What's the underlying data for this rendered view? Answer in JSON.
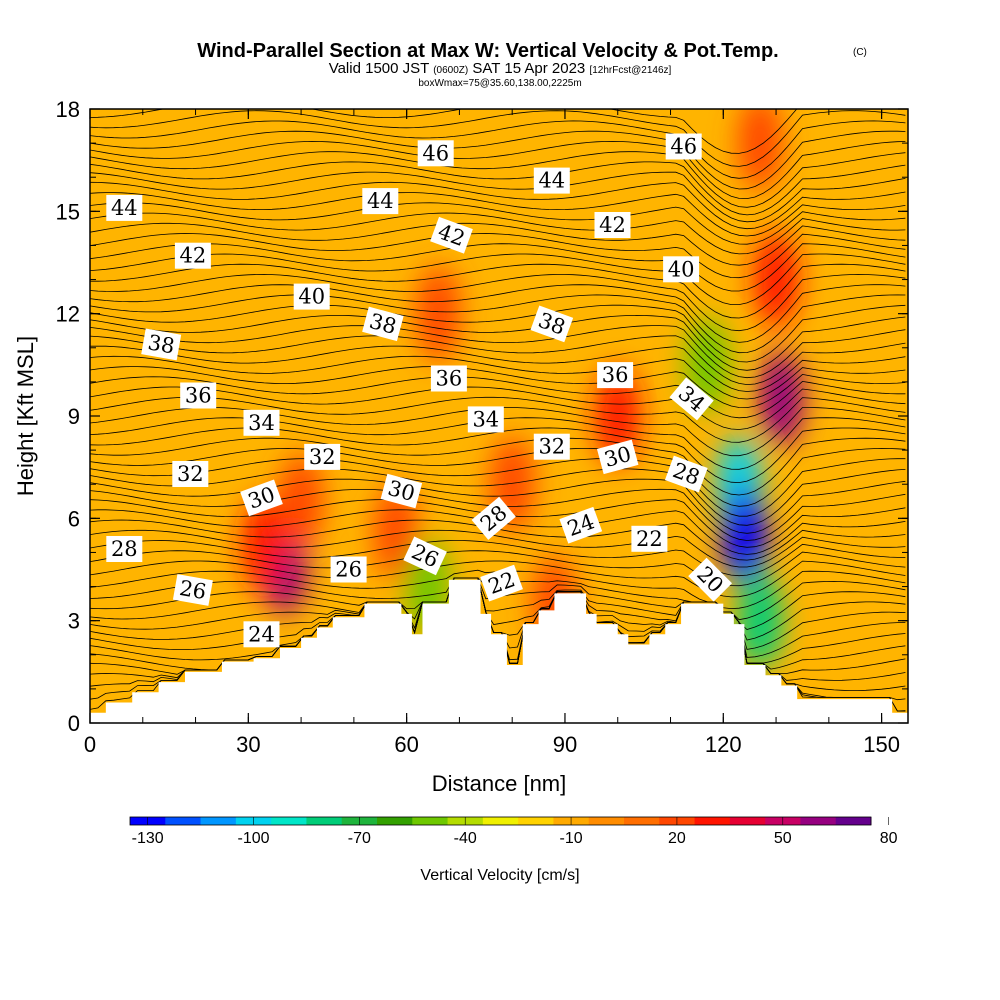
{
  "chart_data": {
    "type": "contour",
    "title": "Wind-Parallel Section at Max W: Vertical Velocity & Pot.Temp.",
    "title_mark": "(C)",
    "subtitle_parts": [
      "Valid 1500 JST",
      "(0600Z)",
      "SAT 15 Apr 2023",
      "[12hrFcst@2146z]"
    ],
    "subtitle2": "boxWmax=75@35.60,138.00,2225m",
    "xlabel": "Distance [nm]",
    "ylabel": "Height [Kft MSL]",
    "xlim": [
      0,
      155
    ],
    "ylim": [
      0,
      18
    ],
    "x_ticks": [
      "0",
      "30",
      "60",
      "90",
      "120",
      "150"
    ],
    "y_ticks": [
      "0",
      "3",
      "6",
      "9",
      "12",
      "15",
      "18"
    ],
    "colorbar": {
      "title": "Vertical Velocity [cm/s]",
      "labels": [
        "-130",
        "-100",
        "-70",
        "-40",
        "-10",
        "20",
        "50",
        "80"
      ],
      "colors": [
        "#0000ff",
        "#0050ff",
        "#0096ff",
        "#00d2f0",
        "#00e6c8",
        "#00cd78",
        "#1eb43c",
        "#32a000",
        "#6ec800",
        "#b4dc00",
        "#f0f000",
        "#ffd200",
        "#ffaa00",
        "#ff8c00",
        "#ff6e00",
        "#ff4600",
        "#ff1400",
        "#e60032",
        "#c80064",
        "#960080",
        "#64008c"
      ]
    },
    "velocity_cells": [
      {
        "x": 37,
        "y": 4.6,
        "value": 80
      },
      {
        "x": 33,
        "y": 5.2,
        "value": 50
      },
      {
        "x": 40,
        "y": 6.5,
        "value": 30
      },
      {
        "x": 58,
        "y": 5.6,
        "value": 30
      },
      {
        "x": 64,
        "y": 4.0,
        "value": -40
      },
      {
        "x": 66,
        "y": 12.0,
        "value": 30
      },
      {
        "x": 80,
        "y": 7.0,
        "value": 30
      },
      {
        "x": 100,
        "y": 9.0,
        "value": 50
      },
      {
        "x": 117,
        "y": 10.5,
        "value": -40
      },
      {
        "x": 123,
        "y": 7.0,
        "value": -100
      },
      {
        "x": 124,
        "y": 5.5,
        "value": -130
      },
      {
        "x": 127,
        "y": 3.0,
        "value": -70
      },
      {
        "x": 131,
        "y": 9.5,
        "value": 80
      },
      {
        "x": 130,
        "y": 13.0,
        "value": 50
      },
      {
        "x": 127,
        "y": 17.0,
        "value": 40
      },
      {
        "x": 88,
        "y": 3.5,
        "value": 30
      }
    ],
    "terrain": [
      [
        0,
        0.3
      ],
      [
        3,
        0.3
      ],
      [
        3,
        0.6
      ],
      [
        8,
        0.6
      ],
      [
        8,
        0.9
      ],
      [
        13,
        0.9
      ],
      [
        13,
        1.2
      ],
      [
        18,
        1.2
      ],
      [
        18,
        1.5
      ],
      [
        25,
        1.5
      ],
      [
        25,
        1.8
      ],
      [
        31,
        1.8
      ],
      [
        31,
        1.9
      ],
      [
        36,
        1.9
      ],
      [
        36,
        2.2
      ],
      [
        40,
        2.2
      ],
      [
        40,
        2.5
      ],
      [
        43,
        2.5
      ],
      [
        43,
        2.8
      ],
      [
        46,
        2.8
      ],
      [
        46,
        3.1
      ],
      [
        52,
        3.1
      ],
      [
        52,
        3.5
      ],
      [
        59,
        3.5
      ],
      [
        59,
        3.2
      ],
      [
        61,
        3.2
      ],
      [
        61,
        2.6
      ],
      [
        63,
        2.6
      ],
      [
        63,
        3.5
      ],
      [
        68,
        3.5
      ],
      [
        68,
        4.2
      ],
      [
        74,
        4.2
      ],
      [
        74,
        3.2
      ],
      [
        76,
        3.2
      ],
      [
        76,
        2.6
      ],
      [
        79,
        2.6
      ],
      [
        79,
        1.7
      ],
      [
        82,
        1.7
      ],
      [
        82,
        2.9
      ],
      [
        85,
        2.9
      ],
      [
        85,
        3.3
      ],
      [
        88,
        3.3
      ],
      [
        88,
        3.8
      ],
      [
        94,
        3.8
      ],
      [
        94,
        3.2
      ],
      [
        96,
        3.2
      ],
      [
        96,
        2.9
      ],
      [
        100,
        2.9
      ],
      [
        100,
        2.6
      ],
      [
        102,
        2.6
      ],
      [
        102,
        2.3
      ],
      [
        106,
        2.3
      ],
      [
        106,
        2.6
      ],
      [
        109,
        2.6
      ],
      [
        109,
        2.9
      ],
      [
        112,
        2.9
      ],
      [
        112,
        3.5
      ],
      [
        116,
        3.5
      ],
      [
        116,
        3.5
      ],
      [
        120,
        3.5
      ],
      [
        120,
        3.2
      ],
      [
        122,
        3.2
      ],
      [
        122,
        2.9
      ],
      [
        124,
        2.9
      ],
      [
        124,
        1.7
      ],
      [
        128,
        1.7
      ],
      [
        128,
        1.4
      ],
      [
        131,
        1.4
      ],
      [
        131,
        1.1
      ],
      [
        134,
        1.1
      ],
      [
        134,
        0.7
      ],
      [
        140,
        0.7
      ],
      [
        140,
        0.7
      ],
      [
        152,
        0.7
      ],
      [
        152,
        0.3
      ],
      [
        155,
        0.3
      ]
    ],
    "isentrope_levels": [
      20,
      22,
      24,
      26,
      28,
      30,
      32,
      34,
      36,
      38,
      40,
      42,
      44,
      46
    ],
    "contour_labels": [
      {
        "text": "44",
        "x": 6.5,
        "y": 15.1,
        "angle": 0
      },
      {
        "text": "42",
        "x": 19.5,
        "y": 13.7,
        "angle": 0
      },
      {
        "text": "40",
        "x": 42,
        "y": 12.5,
        "angle": 0
      },
      {
        "text": "38",
        "x": 13.5,
        "y": 11.1,
        "angle": 10
      },
      {
        "text": "36",
        "x": 20.5,
        "y": 9.6,
        "angle": 0
      },
      {
        "text": "34",
        "x": 32.5,
        "y": 8.8,
        "angle": 0
      },
      {
        "text": "32",
        "x": 19,
        "y": 7.3,
        "angle": 0
      },
      {
        "text": "32",
        "x": 44,
        "y": 7.8,
        "angle": 0
      },
      {
        "text": "30",
        "x": 32.5,
        "y": 6.6,
        "angle": -20
      },
      {
        "text": "28",
        "x": 6.5,
        "y": 5.1,
        "angle": 0
      },
      {
        "text": "26",
        "x": 19.5,
        "y": 3.9,
        "angle": 10
      },
      {
        "text": "26",
        "x": 49,
        "y": 4.5,
        "angle": 0
      },
      {
        "text": "24",
        "x": 32.5,
        "y": 2.6,
        "angle": 0
      },
      {
        "text": "46",
        "x": 65.5,
        "y": 16.7,
        "angle": 0
      },
      {
        "text": "44",
        "x": 55,
        "y": 15.3,
        "angle": 0
      },
      {
        "text": "42",
        "x": 68.5,
        "y": 14.3,
        "angle": 20
      },
      {
        "text": "38",
        "x": 55.5,
        "y": 11.7,
        "angle": 15
      },
      {
        "text": "36",
        "x": 68,
        "y": 10.1,
        "angle": 0
      },
      {
        "text": "34",
        "x": 75,
        "y": 8.9,
        "angle": 0
      },
      {
        "text": "30",
        "x": 59,
        "y": 6.8,
        "angle": 15
      },
      {
        "text": "28",
        "x": 76.5,
        "y": 6.0,
        "angle": -40
      },
      {
        "text": "26",
        "x": 63.5,
        "y": 4.9,
        "angle": 25
      },
      {
        "text": "22",
        "x": 78,
        "y": 4.1,
        "angle": -20
      },
      {
        "text": "46",
        "x": 112.5,
        "y": 16.9,
        "angle": 0
      },
      {
        "text": "44",
        "x": 87.5,
        "y": 15.9,
        "angle": 0
      },
      {
        "text": "42",
        "x": 99,
        "y": 14.6,
        "angle": 0
      },
      {
        "text": "40",
        "x": 112,
        "y": 13.3,
        "angle": 0
      },
      {
        "text": "38",
        "x": 87.5,
        "y": 11.7,
        "angle": 20
      },
      {
        "text": "36",
        "x": 99.5,
        "y": 10.2,
        "angle": 0
      },
      {
        "text": "34",
        "x": 114,
        "y": 9.5,
        "angle": 40
      },
      {
        "text": "32",
        "x": 87.5,
        "y": 8.1,
        "angle": 0
      },
      {
        "text": "30",
        "x": 100,
        "y": 7.8,
        "angle": -15
      },
      {
        "text": "28",
        "x": 113,
        "y": 7.3,
        "angle": 20
      },
      {
        "text": "24",
        "x": 93,
        "y": 5.8,
        "angle": -20
      },
      {
        "text": "22",
        "x": 106,
        "y": 5.4,
        "angle": 0
      },
      {
        "text": "20",
        "x": 117.5,
        "y": 4.2,
        "angle": 45
      }
    ]
  }
}
